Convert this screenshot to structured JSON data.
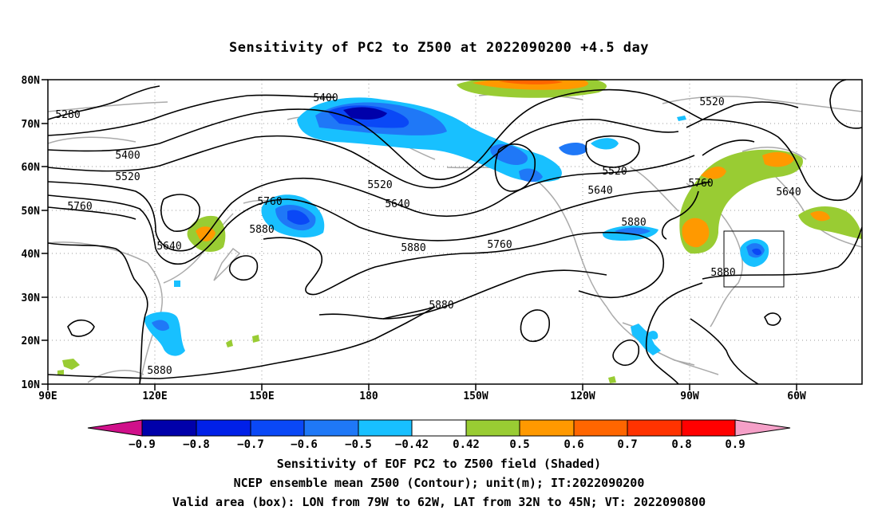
{
  "title": "Sensitivity of PC2 to Z500 at 2022090200 +4.5 day",
  "map": {
    "lat_labels": [
      "80N",
      "70N",
      "60N",
      "50N",
      "40N",
      "30N",
      "20N",
      "10N"
    ],
    "lon_labels": [
      "90E",
      "120E",
      "150E",
      "180",
      "150W",
      "120W",
      "90W",
      "60W"
    ],
    "contour_labels": [
      {
        "text": "5280"
      },
      {
        "text": "5400"
      },
      {
        "text": "5400"
      },
      {
        "text": "5520"
      },
      {
        "text": "5520"
      },
      {
        "text": "5520"
      },
      {
        "text": "5520"
      },
      {
        "text": "5640"
      },
      {
        "text": "5640"
      },
      {
        "text": "5640"
      },
      {
        "text": "5640"
      },
      {
        "text": "5760"
      },
      {
        "text": "5760"
      },
      {
        "text": "5760"
      },
      {
        "text": "5760"
      },
      {
        "text": "5880"
      },
      {
        "text": "5880"
      },
      {
        "text": "5880"
      },
      {
        "text": "5880"
      },
      {
        "text": "5880"
      },
      {
        "text": "5880"
      }
    ]
  },
  "colorbar": {
    "labels": [
      "−0.9",
      "−0.8",
      "−0.7",
      "−0.6",
      "−0.5",
      "−0.42",
      "0.42",
      "0.5",
      "0.6",
      "0.7",
      "0.8",
      "0.9"
    ],
    "colors": {
      "neg_end": "#d0108a",
      "c1": "#0000aa",
      "c2": "#0020e8",
      "c3": "#0a48f6",
      "c4": "#1f78f7",
      "c5": "#18c0ff",
      "mid": "#ffffff",
      "p1": "#99cc33",
      "p2": "#ff9900",
      "p3": "#ff6600",
      "p4": "#ff3300",
      "p5": "#ff0000",
      "pos_end": "#f5a0c8"
    }
  },
  "captions": [
    "Sensitivity of EOF PC2 to Z500 field (Shaded)",
    "NCEP ensemble mean Z500 (Contour); unit(m); IT:2022090200",
    "Valid area (box): LON from 79W to 62W, LAT from 32N to 45N; VT: 2022090800"
  ]
}
